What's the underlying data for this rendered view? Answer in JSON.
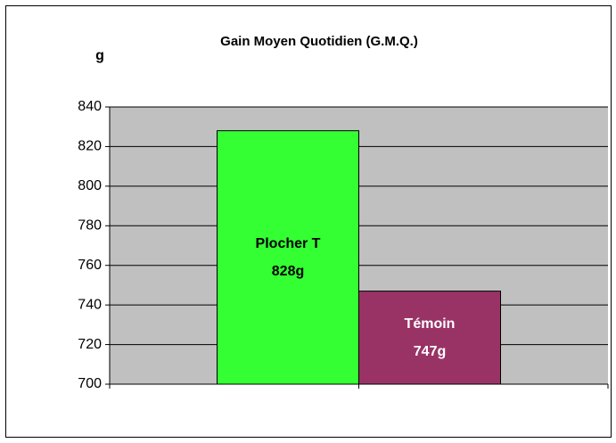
{
  "chart_data": {
    "type": "bar",
    "title": "Gain Moyen Quotidien (G.M.Q.)",
    "y_label": "g",
    "categories": [
      "Plocher T",
      "Témoin"
    ],
    "values": [
      828,
      747
    ],
    "value_labels": [
      "828g",
      "747g"
    ],
    "colors": [
      "#33ff33",
      "#993366"
    ],
    "ylim": [
      700,
      840
    ],
    "yticks": [
      700,
      720,
      740,
      760,
      780,
      800,
      820,
      840
    ],
    "grid": true
  }
}
